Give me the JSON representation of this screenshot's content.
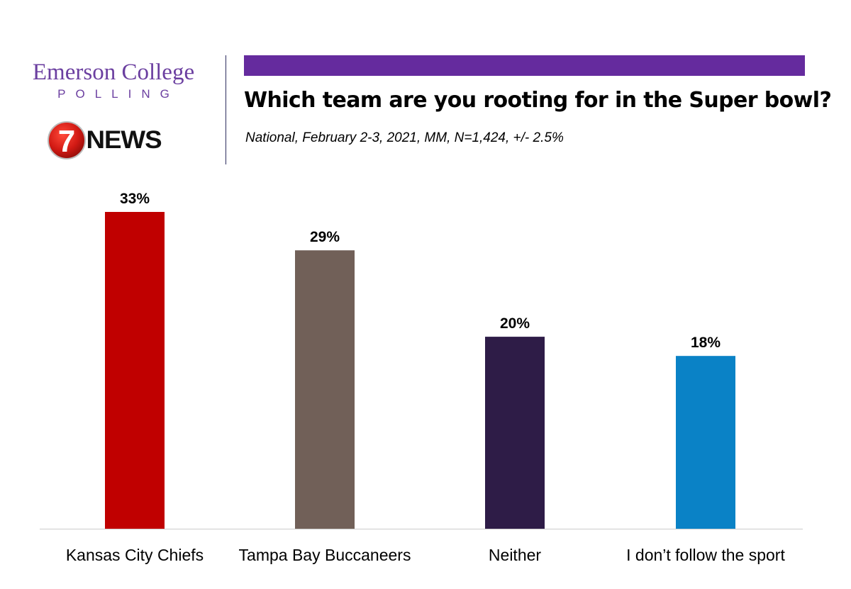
{
  "header": {
    "brand_name": "Emerson College",
    "brand_sub": "POLLING",
    "news_logo_number": "7",
    "news_logo_word": "NEWS",
    "accent_color": "#652b9e"
  },
  "chart_data": {
    "type": "bar",
    "title": "Which team are you rooting for in the Super bowl?",
    "subtitle": "National, February 2-3, 2021, MM, N=1,424, +/- 2.5%",
    "categories": [
      "Kansas City Chiefs",
      "Tampa Bay Buccaneers",
      "Neither",
      "I don’t follow the sport"
    ],
    "values": [
      33,
      29,
      20,
      18
    ],
    "value_labels": [
      "33%",
      "29%",
      "20%",
      "18%"
    ],
    "colors": [
      "#c00000",
      "#716058",
      "#2e1c47",
      "#0a82c6"
    ],
    "ylim": [
      0,
      35
    ],
    "grid": false,
    "legend": "none"
  }
}
